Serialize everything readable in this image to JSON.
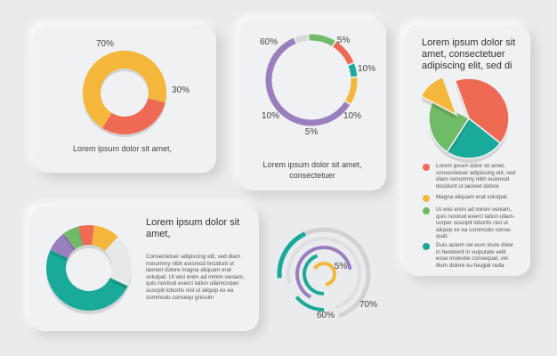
{
  "colors": {
    "orange": "#f4b73c",
    "red": "#ee6a55",
    "green": "#6fbb67",
    "teal": "#1aaa9a",
    "purple": "#9a7fbf",
    "gray": "#d6d8da",
    "light": "#e7e8e9"
  },
  "chart_data": [
    {
      "type": "pie",
      "variant": "donut",
      "labels": [
        "70%",
        "30%"
      ],
      "values": [
        70,
        30
      ],
      "colors": [
        "#f4b73c",
        "#ee6a55"
      ]
    },
    {
      "type": "pie",
      "variant": "ring",
      "labels": [
        "5%",
        "10%",
        "10%",
        "5%",
        "10%",
        "60%"
      ],
      "values": [
        5,
        10,
        10,
        5,
        10,
        60
      ],
      "colors": [
        "#d6d8da",
        "#6fbb67",
        "#ee6a55",
        "#1aaa9a",
        "#f4b73c",
        "#9a7fbf"
      ]
    },
    {
      "type": "pie",
      "variant": "exploded",
      "values": [
        35,
        20,
        20,
        10
      ],
      "colors": [
        "#ee6a55",
        "#1aaa9a",
        "#6fbb67",
        "#f4b73c"
      ]
    },
    {
      "type": "pie",
      "variant": "donut",
      "values": [
        50,
        8,
        6,
        6,
        10,
        20
      ],
      "colors": [
        "#1aaa9a",
        "#9a7fbf",
        "#6fbb67",
        "#ee6a55",
        "#f4b73c",
        "#e7e8e9"
      ]
    },
    {
      "type": "pie",
      "variant": "concentric-arcs",
      "labels": [
        "70%",
        "60%",
        "5%"
      ]
    }
  ],
  "card1": {
    "caption": "Lorem ipsum dolor sit amet,"
  },
  "card2": {
    "caption": "Lorem ipsum dolor sit amet, consectetuer"
  },
  "card3": {
    "title": "Lorem ipsum dolor sit amet, consectetuer adipiscing elit, sed di",
    "legend": [
      {
        "color": "#ee6a55",
        "text": "Lorem ipsum dolor sit amet, consectetuer adipiscing elit, sed diam nonummy nibh euismod tincidunt ut laoreet dolore"
      },
      {
        "color": "#f4b73c",
        "text": "Magna aliquam erat volutpat."
      },
      {
        "color": "#6fbb67",
        "text": "Ut wisi enim ad minim veniam, quis nostrud exerci tation ullam-corper suscipit lobortis nisl ut aliquip ex ea commodo conse-quat."
      },
      {
        "color": "#1aaa9a",
        "text": "Duis autem vel eum iriure dolor in hendrerit in vulputate velit esse molestie consequat, vel illum dolore eu feugiat nulla"
      }
    ]
  },
  "card4": {
    "title": "Lorem ipsum dolor sit amet,",
    "body": "Consectetuer adipiscing elit, sed diam nonummy nibh euismod tincidunt ut laoreet dolore magna aliquam erat volutpat. Ut wisi enim ad minim veniam, quis nostrud exerci tation ullamcorper suscipit lobortis nisl ut aliquip ex ea commodo consequ gnissim"
  }
}
